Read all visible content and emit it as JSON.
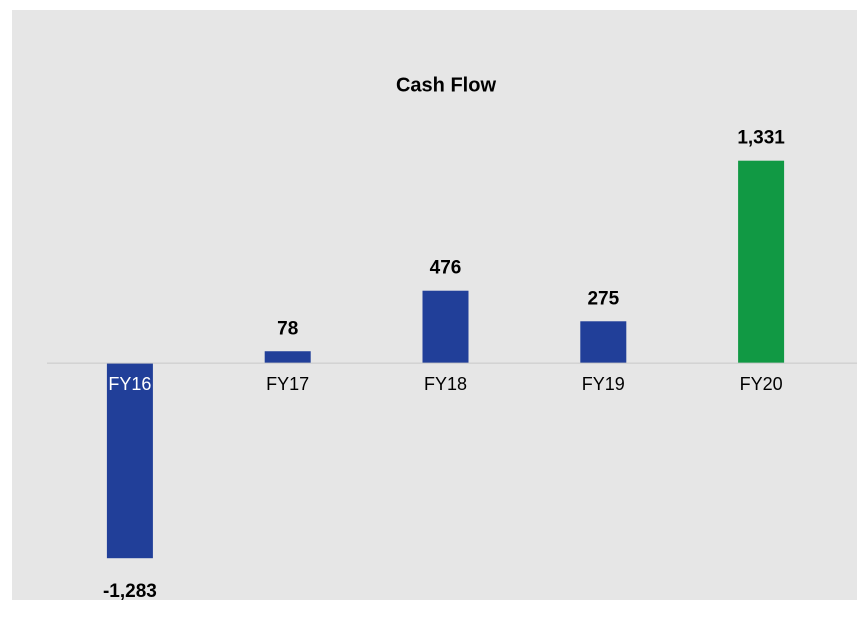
{
  "chart_data": {
    "type": "bar",
    "title": "Cash Flow",
    "categories": [
      "FY16",
      "FY17",
      "FY18",
      "FY19",
      "FY20"
    ],
    "values": [
      -1283,
      78,
      476,
      275,
      1331
    ],
    "value_labels": [
      "-1,283",
      "78",
      "476",
      "275",
      "1,331"
    ],
    "colors": [
      "#213f99",
      "#213f99",
      "#213f99",
      "#213f99",
      "#119944"
    ],
    "ylim": [
      -1400,
      1500
    ]
  }
}
